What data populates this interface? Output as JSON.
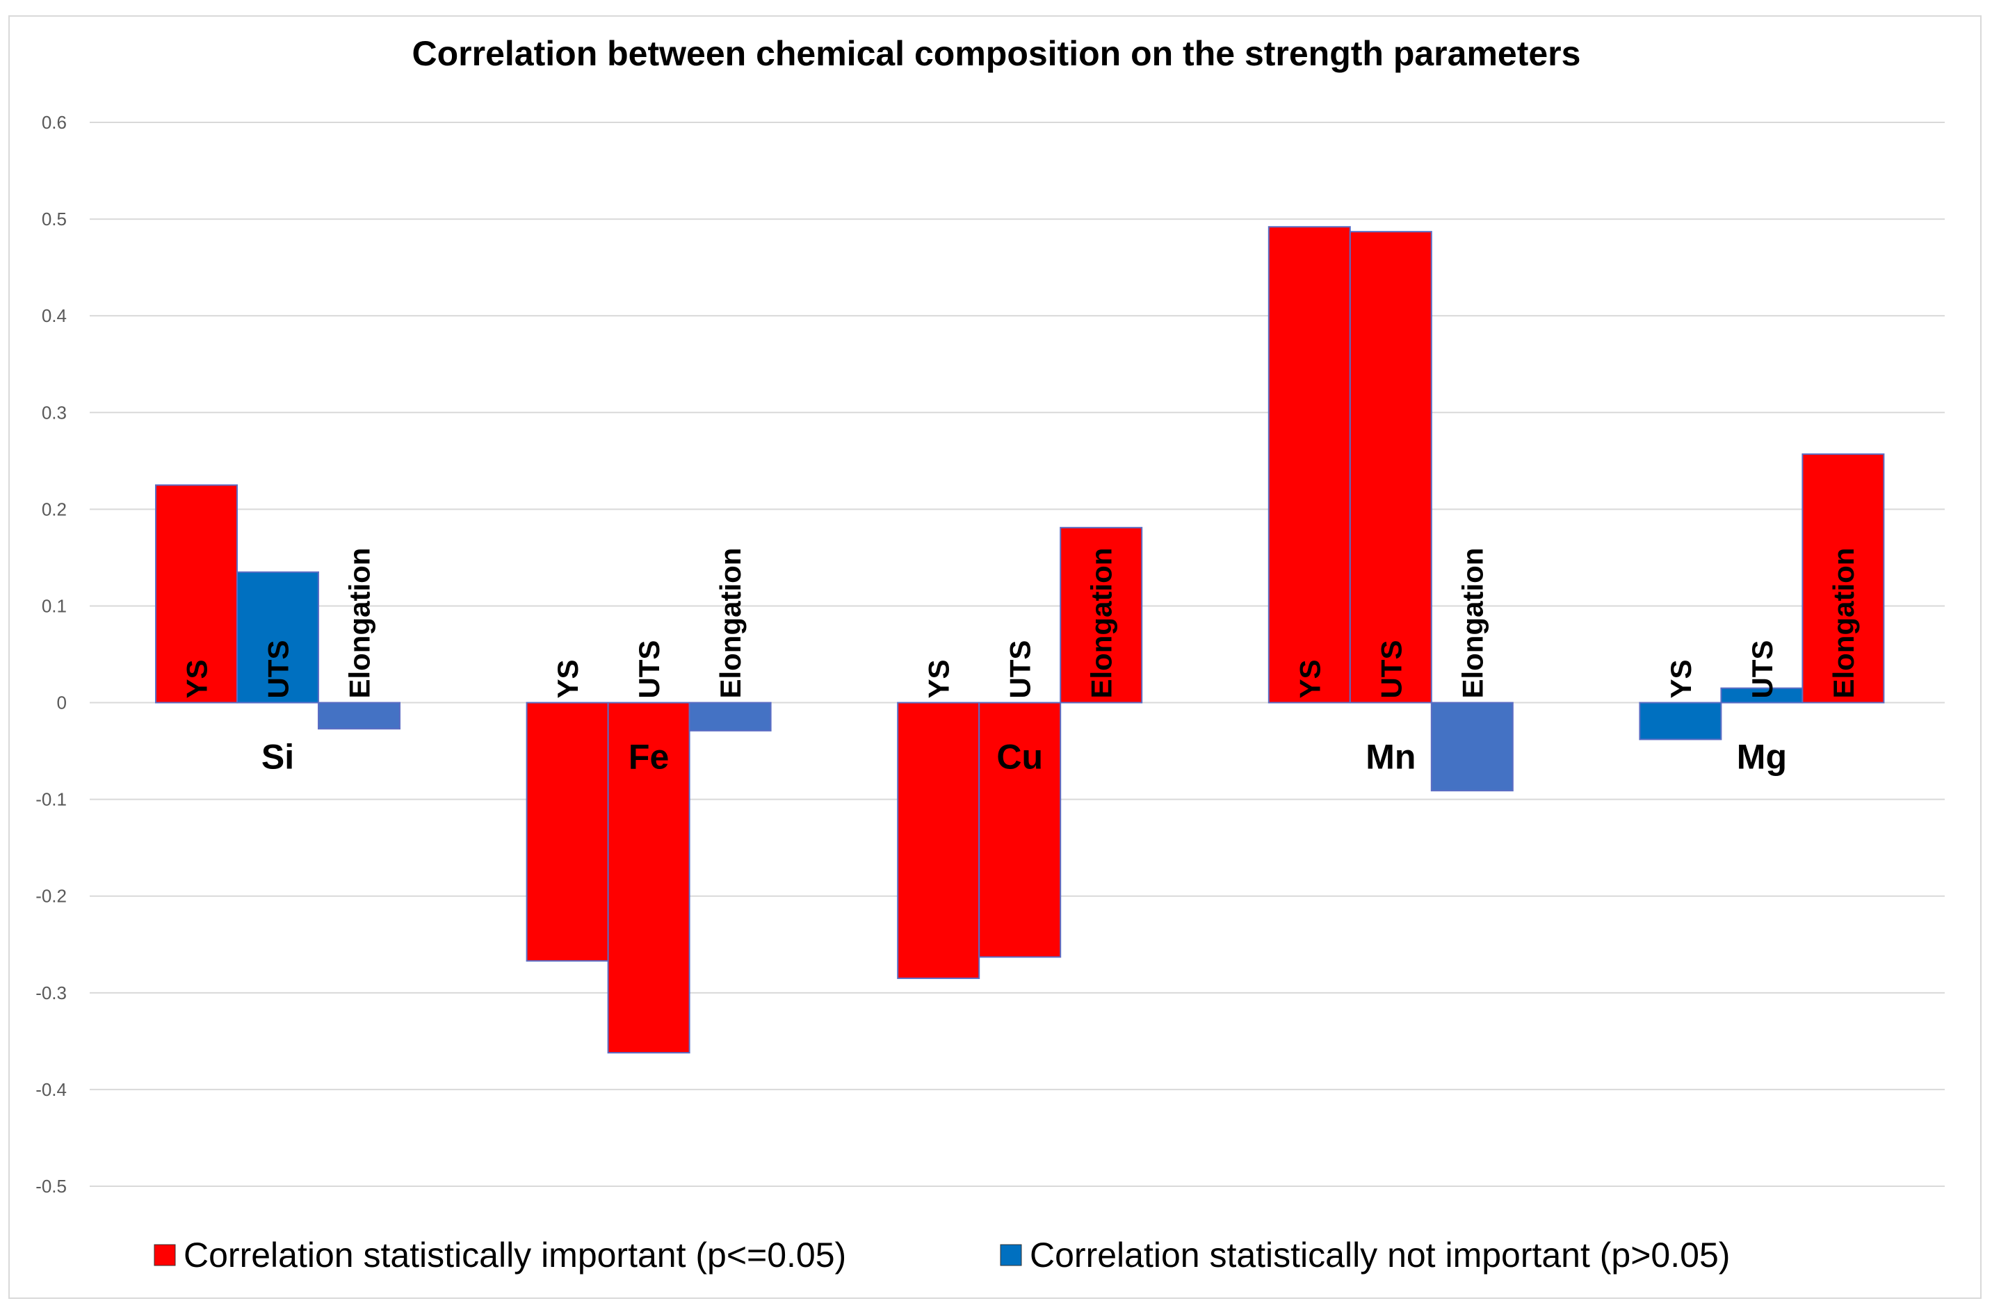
{
  "chart_data": {
    "type": "bar",
    "title": "Correlation between chemical composition on the strength parameters",
    "xlabel": "",
    "ylabel": "",
    "ylim": [
      -0.5,
      0.6
    ],
    "ytick_step": 0.1,
    "yticks": [
      "-0.5",
      "-0.4",
      "-0.3",
      "-0.2",
      "-0.1",
      "0",
      "0.1",
      "0.2",
      "0.3",
      "0.4",
      "0.5",
      "0.6"
    ],
    "grid": true,
    "legend_position": "bottom",
    "categories": [
      "Si",
      "Fe",
      "Cu",
      "Mn",
      "Mg"
    ],
    "series": [
      {
        "name": "YS",
        "values": [
          0.225,
          -0.267,
          -0.285,
          0.492,
          -0.038
        ],
        "significant": [
          true,
          true,
          true,
          true,
          false
        ]
      },
      {
        "name": "UTS",
        "values": [
          0.135,
          -0.362,
          -0.263,
          0.487,
          0.015
        ],
        "significant": [
          false,
          true,
          true,
          true,
          false
        ]
      },
      {
        "name": "Elongation",
        "values": [
          -0.027,
          -0.029,
          0.181,
          -0.091,
          0.257
        ],
        "significant": [
          false,
          false,
          true,
          false,
          true
        ]
      }
    ],
    "legend": [
      {
        "key": "significant",
        "label": "Correlation statistically important (p<=0.05)",
        "color": "#ff0000"
      },
      {
        "key": "not_significant",
        "label": "Correlation statistically not important (p>0.05)",
        "color": "#0070c0"
      }
    ]
  },
  "colors": {
    "significant": "#ff0000",
    "not_significant": "#0070c0",
    "not_significant_elongation": "#4472c4",
    "bar_edge": "#5b6dc4"
  }
}
